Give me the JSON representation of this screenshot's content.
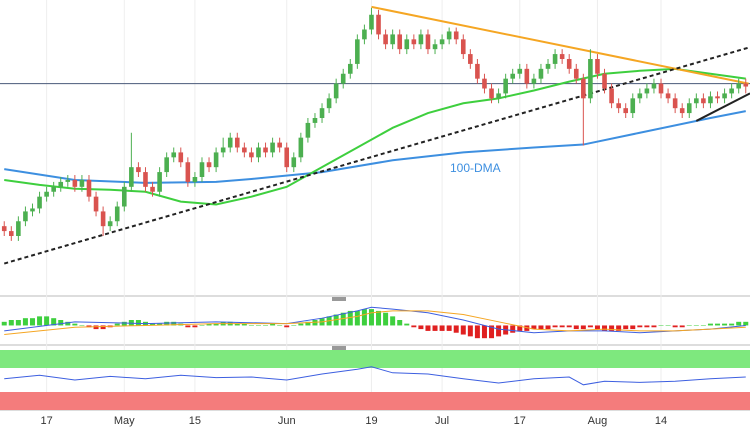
{
  "chart_data": {
    "type": "candlestick",
    "xlim": [
      -0.6,
      105.6
    ],
    "ylim": [
      0,
      300
    ],
    "up_color": "#4caf50",
    "down_color": "#d9534f",
    "xticks": [
      {
        "value": 6,
        "label": "17"
      },
      {
        "value": 17,
        "label": "May"
      },
      {
        "value": 27,
        "label": "15"
      },
      {
        "value": 40,
        "label": "Jun"
      },
      {
        "value": 52,
        "label": "19"
      },
      {
        "value": 62,
        "label": "Jul"
      },
      {
        "value": 73,
        "label": "17"
      },
      {
        "value": 84,
        "label": "Aug"
      },
      {
        "value": 93,
        "label": "14"
      }
    ],
    "candles": [
      [
        70,
        75,
        60,
        65
      ],
      [
        65,
        70,
        55,
        60
      ],
      [
        60,
        80,
        55,
        75
      ],
      [
        75,
        90,
        70,
        85
      ],
      [
        85,
        93,
        80,
        88
      ],
      [
        88,
        105,
        83,
        100
      ],
      [
        100,
        110,
        95,
        105
      ],
      [
        105,
        115,
        100,
        110
      ],
      [
        110,
        120,
        105,
        115
      ],
      [
        115,
        122,
        110,
        117
      ],
      [
        117,
        122,
        105,
        110
      ],
      [
        110,
        122,
        105,
        117
      ],
      [
        117,
        122,
        95,
        100
      ],
      [
        100,
        105,
        80,
        85
      ],
      [
        85,
        90,
        60,
        70
      ],
      [
        70,
        80,
        65,
        75
      ],
      [
        75,
        95,
        70,
        90
      ],
      [
        90,
        115,
        85,
        110
      ],
      [
        110,
        165,
        105,
        130
      ],
      [
        130,
        135,
        120,
        125
      ],
      [
        125,
        130,
        105,
        110
      ],
      [
        110,
        115,
        100,
        105
      ],
      [
        105,
        130,
        100,
        125
      ],
      [
        125,
        145,
        120,
        140
      ],
      [
        140,
        150,
        135,
        145
      ],
      [
        145,
        150,
        130,
        135
      ],
      [
        135,
        140,
        110,
        115
      ],
      [
        115,
        125,
        110,
        120
      ],
      [
        120,
        140,
        115,
        135
      ],
      [
        135,
        140,
        125,
        130
      ],
      [
        130,
        150,
        125,
        145
      ],
      [
        145,
        160,
        140,
        150
      ],
      [
        150,
        165,
        145,
        160
      ],
      [
        160,
        165,
        145,
        150
      ],
      [
        150,
        155,
        140,
        145
      ],
      [
        145,
        150,
        135,
        140
      ],
      [
        140,
        155,
        135,
        150
      ],
      [
        150,
        155,
        140,
        145
      ],
      [
        145,
        160,
        140,
        155
      ],
      [
        155,
        160,
        145,
        150
      ],
      [
        150,
        155,
        125,
        130
      ],
      [
        130,
        145,
        125,
        140
      ],
      [
        140,
        165,
        135,
        160
      ],
      [
        160,
        180,
        155,
        175
      ],
      [
        175,
        185,
        170,
        180
      ],
      [
        180,
        195,
        175,
        190
      ],
      [
        190,
        205,
        185,
        200
      ],
      [
        200,
        220,
        195,
        215
      ],
      [
        215,
        230,
        210,
        225
      ],
      [
        225,
        240,
        220,
        235
      ],
      [
        235,
        265,
        230,
        260
      ],
      [
        260,
        275,
        255,
        270
      ],
      [
        270,
        292,
        265,
        285
      ],
      [
        285,
        290,
        260,
        265
      ],
      [
        265,
        270,
        250,
        255
      ],
      [
        255,
        270,
        250,
        265
      ],
      [
        265,
        270,
        245,
        250
      ],
      [
        250,
        265,
        245,
        260
      ],
      [
        260,
        265,
        250,
        255
      ],
      [
        255,
        270,
        250,
        265
      ],
      [
        265,
        270,
        245,
        250
      ],
      [
        250,
        260,
        245,
        255
      ],
      [
        255,
        265,
        250,
        260
      ],
      [
        260,
        272,
        255,
        268
      ],
      [
        268,
        272,
        255,
        260
      ],
      [
        260,
        265,
        240,
        245
      ],
      [
        245,
        250,
        230,
        235
      ],
      [
        235,
        240,
        215,
        220
      ],
      [
        220,
        225,
        205,
        210
      ],
      [
        210,
        215,
        195,
        200
      ],
      [
        200,
        210,
        195,
        205
      ],
      [
        205,
        225,
        200,
        220
      ],
      [
        220,
        230,
        215,
        225
      ],
      [
        225,
        235,
        220,
        230
      ],
      [
        230,
        235,
        210,
        215
      ],
      [
        215,
        225,
        210,
        220
      ],
      [
        220,
        235,
        215,
        230
      ],
      [
        230,
        240,
        225,
        235
      ],
      [
        235,
        250,
        230,
        245
      ],
      [
        245,
        250,
        235,
        240
      ],
      [
        240,
        245,
        225,
        230
      ],
      [
        230,
        235,
        215,
        220
      ],
      [
        220,
        225,
        152,
        200
      ],
      [
        200,
        250,
        195,
        240
      ],
      [
        240,
        245,
        220,
        225
      ],
      [
        225,
        230,
        205,
        210
      ],
      [
        210,
        215,
        190,
        195
      ],
      [
        195,
        200,
        185,
        190
      ],
      [
        190,
        195,
        180,
        185
      ],
      [
        185,
        205,
        180,
        200
      ],
      [
        200,
        210,
        195,
        205
      ],
      [
        205,
        215,
        200,
        210
      ],
      [
        210,
        220,
        205,
        215
      ],
      [
        215,
        220,
        200,
        205
      ],
      [
        205,
        210,
        195,
        200
      ],
      [
        200,
        205,
        185,
        190
      ],
      [
        190,
        195,
        180,
        185
      ],
      [
        185,
        200,
        180,
        195
      ],
      [
        195,
        205,
        190,
        200
      ],
      [
        200,
        205,
        190,
        195
      ],
      [
        195,
        207,
        190,
        202
      ],
      [
        202,
        207,
        195,
        200
      ],
      [
        200,
        210,
        195,
        205
      ],
      [
        205,
        215,
        200,
        210
      ],
      [
        210,
        220,
        205,
        215
      ],
      [
        215,
        220,
        205,
        212
      ]
    ],
    "hline": {
      "value": 215,
      "color": "#4a5a7a"
    },
    "lines": [
      {
        "color": "#3d8fe0",
        "dash": false,
        "x": [
          0,
          10,
          20,
          30,
          35,
          45,
          55,
          65,
          75,
          82,
          90,
          100,
          105
        ],
        "values": [
          128,
          117,
          114,
          115,
          118,
          125,
          137,
          145,
          150,
          153,
          165,
          180,
          187
        ]
      },
      {
        "color": "#3ecf3e",
        "dash": false,
        "x": [
          0,
          5,
          10,
          15,
          20,
          25,
          30,
          35,
          40,
          45,
          50,
          55,
          60,
          65,
          70,
          75,
          80,
          85,
          90,
          95,
          100,
          105
        ],
        "values": [
          117,
          112,
          108,
          107,
          105,
          95,
          92,
          100,
          110,
          130,
          150,
          170,
          185,
          195,
          200,
          208,
          217,
          225,
          228,
          230,
          225,
          220
        ]
      },
      {
        "color": "#f5a623",
        "dash": false,
        "x": [
          52,
          105.4
        ],
        "values": [
          293,
          215
        ]
      },
      {
        "color": "#222222",
        "dash": true,
        "x": [
          0,
          105.6
        ],
        "values": [
          32,
          252
        ]
      },
      {
        "color": "#222222",
        "dash": false,
        "x": [
          98,
          105.6
        ],
        "values": [
          177,
          205
        ]
      }
    ],
    "annotations": [
      {
        "text": "100-DMA",
        "color": "#3d8fe0"
      }
    ],
    "macd": {
      "ylim": [
        -8,
        14
      ],
      "pos_color": "#3ecf3e",
      "neg_color": "#e02020",
      "histogram": [
        2,
        3,
        3,
        4,
        4,
        5,
        5,
        4,
        3,
        2,
        1,
        0,
        -1,
        -2,
        -2,
        -1,
        1,
        2,
        3,
        3,
        2,
        1,
        1,
        2,
        2,
        1,
        -1,
        -1,
        0,
        1,
        1,
        2,
        2,
        1,
        1,
        0,
        0,
        0,
        1,
        0,
        -1,
        0,
        1,
        2,
        3,
        4,
        5,
        6,
        7,
        8,
        8,
        9,
        9,
        8,
        7,
        5,
        3,
        1,
        -1,
        -2,
        -3,
        -3,
        -3,
        -3,
        -4,
        -5,
        -6,
        -7,
        -7,
        -7,
        -6,
        -5,
        -4,
        -3,
        -3,
        -2,
        -2,
        -2,
        -1,
        -1,
        -1,
        -2,
        -2,
        -1,
        -2,
        -3,
        -3,
        -3,
        -2,
        -2,
        -1,
        -1,
        -1,
        0,
        0,
        -1,
        -1,
        0,
        0,
        0,
        1,
        1,
        1,
        1,
        2,
        2
      ],
      "lines": [
        {
          "color": "#3d5fe0",
          "x": [
            0,
            10,
            20,
            30,
            40,
            45,
            50,
            52,
            55,
            60,
            65,
            70,
            75,
            80,
            85,
            90,
            95,
            100,
            105
          ],
          "values": [
            -3,
            2,
            1,
            2,
            1,
            4,
            8,
            10,
            9,
            7,
            3,
            -2,
            -4,
            -3,
            -3,
            -4,
            -3,
            -2,
            0
          ]
        },
        {
          "color": "#f5a623",
          "x": [
            0,
            10,
            20,
            30,
            40,
            45,
            50,
            52,
            55,
            60,
            65,
            70,
            75,
            80,
            85,
            90,
            95,
            100,
            105
          ],
          "values": [
            -5,
            -1,
            0,
            1,
            1,
            2,
            5,
            7,
            8,
            8,
            6,
            2,
            -2,
            -3,
            -2,
            -3,
            -3,
            -2,
            -1
          ]
        }
      ]
    },
    "rsi": {
      "ylim": [
        0,
        100
      ],
      "upper": 70,
      "lower": 30,
      "upper_color": "#7ee87e",
      "lower_color": "#f47c7c",
      "color": "#3d5fe0",
      "x": [
        0,
        5,
        10,
        15,
        20,
        25,
        30,
        35,
        40,
        45,
        50,
        52,
        55,
        60,
        65,
        70,
        75,
        80,
        82,
        85,
        90,
        95,
        100,
        105
      ],
      "values": [
        52,
        58,
        50,
        56,
        52,
        58,
        54,
        55,
        50,
        60,
        68,
        72,
        62,
        60,
        52,
        45,
        52,
        55,
        42,
        48,
        46,
        48,
        52,
        55
      ]
    }
  }
}
